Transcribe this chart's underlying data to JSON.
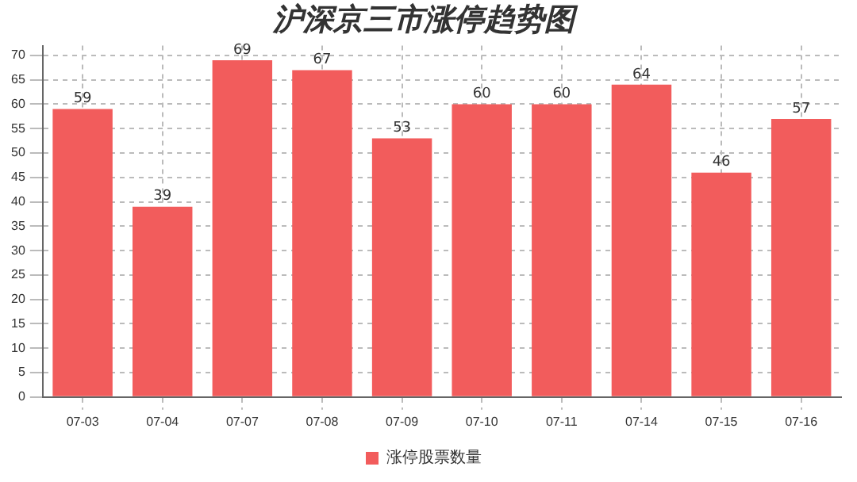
{
  "chart_data": {
    "type": "bar",
    "title": "沪深京三市涨停趋势图",
    "categories": [
      "07-03",
      "07-04",
      "07-07",
      "07-08",
      "07-09",
      "07-10",
      "07-11",
      "07-14",
      "07-15",
      "07-16"
    ],
    "series": [
      {
        "name": "涨停股票数量",
        "color": "#f25c5c",
        "values": [
          59,
          39,
          69,
          67,
          53,
          60,
          60,
          64,
          46,
          57
        ]
      }
    ],
    "ylim": [
      0,
      72
    ],
    "yticks": [
      0,
      5,
      10,
      15,
      20,
      25,
      30,
      35,
      40,
      45,
      50,
      55,
      60,
      65,
      70
    ],
    "grid": true,
    "legend": "bottom",
    "data_labels": true
  }
}
